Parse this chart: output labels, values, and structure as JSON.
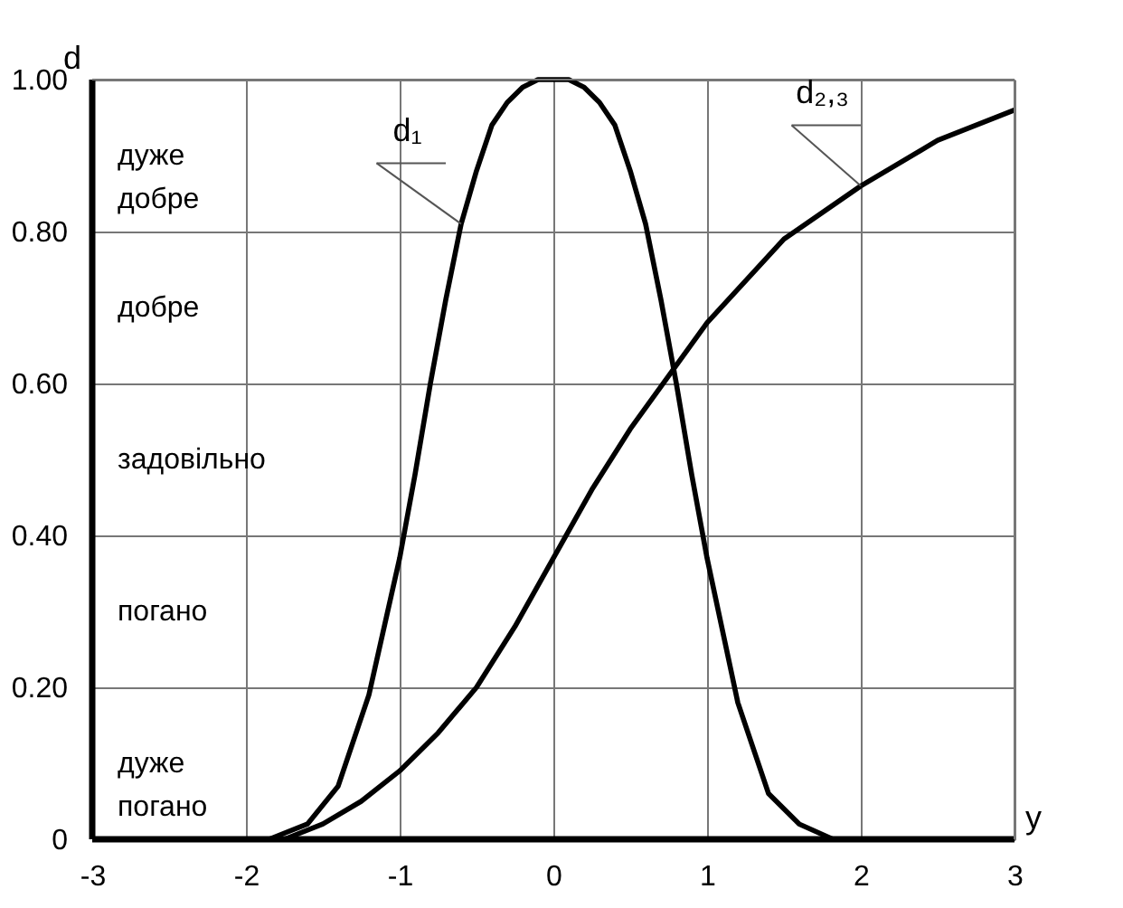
{
  "chart_data": {
    "type": "line",
    "xlabel": "y",
    "ylabel": "d",
    "xlim": [
      -3,
      3
    ],
    "ylim": [
      0,
      1
    ],
    "xticks": [
      -3,
      -2,
      -1,
      0,
      1,
      2,
      3
    ],
    "yticks": [
      0,
      {
        "value": 0.2,
        "label": "0.20"
      },
      {
        "value": 0.4,
        "label": "0.40"
      },
      {
        "value": 0.6,
        "label": "0.60"
      },
      {
        "value": 0.8,
        "label": "0.80"
      },
      {
        "value": 1.0,
        "label": "1.00"
      }
    ],
    "grid": true,
    "marker": "none",
    "line_style": "solid",
    "series": [
      {
        "name": "d₁",
        "color": "#000000",
        "x": [
          -1.85,
          -1.6,
          -1.4,
          -1.2,
          -1.0,
          -0.9,
          -0.8,
          -0.7,
          -0.6,
          -0.5,
          -0.4,
          -0.3,
          -0.2,
          -0.1,
          0,
          0.1,
          0.2,
          0.3,
          0.4,
          0.5,
          0.6,
          0.7,
          0.8,
          0.9,
          1.0,
          1.2,
          1.4,
          1.6,
          1.82
        ],
        "values": [
          0,
          0.02,
          0.07,
          0.19,
          0.37,
          0.48,
          0.6,
          0.71,
          0.81,
          0.88,
          0.94,
          0.97,
          0.99,
          1.0,
          1.0,
          1.0,
          0.99,
          0.97,
          0.94,
          0.88,
          0.81,
          0.71,
          0.6,
          0.48,
          0.37,
          0.18,
          0.06,
          0.02,
          0
        ]
      },
      {
        "name": "d₂,₃",
        "color": "#000000",
        "x": [
          -1.75,
          -1.5,
          -1.25,
          -1.0,
          -0.75,
          -0.5,
          -0.25,
          0,
          0.25,
          0.5,
          0.75,
          1.0,
          1.5,
          2.0,
          2.5,
          3.0
        ],
        "values": [
          0,
          0.02,
          0.05,
          0.09,
          0.14,
          0.2,
          0.28,
          0.37,
          0.46,
          0.54,
          0.61,
          0.68,
          0.79,
          0.86,
          0.92,
          0.96
        ]
      }
    ],
    "annotations": [
      "дуже добре",
      "добре",
      "задовільно",
      "погано",
      "дуже погано"
    ]
  }
}
